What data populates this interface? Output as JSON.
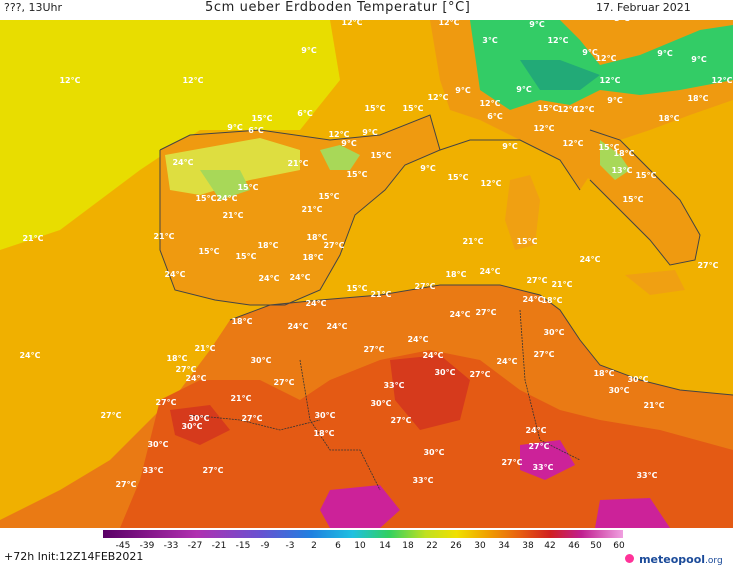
{
  "header": {
    "left": "???, 13Uhr",
    "title": "5cm ueber Erdboden Temperatur [°C]",
    "date": "17. Februar 2021"
  },
  "footer": {
    "run": "+72h Init:12Z14FEB2021",
    "brand": "meteopool",
    "brand_tld": ".org",
    "colorbar_ticks": [
      "-45",
      "-39",
      "-33",
      "-27",
      "-21",
      "-15",
      "-9",
      "-3",
      "2",
      "6",
      "10",
      "14",
      "18",
      "22",
      "26",
      "30",
      "34",
      "38",
      "42",
      "46",
      "50",
      "60"
    ]
  },
  "map_labels": [
    {
      "text": "12°C"
    },
    {
      "text": "12°C"
    },
    {
      "text": "9°C"
    },
    {
      "text": "3°C"
    },
    {
      "text": "6°C"
    },
    {
      "text": "9°C"
    },
    {
      "text": "12°C"
    },
    {
      "text": "12°C"
    },
    {
      "text": "9°C"
    },
    {
      "text": "12°C"
    },
    {
      "text": "3°C"
    },
    {
      "text": "9°C"
    },
    {
      "text": "9°C"
    },
    {
      "text": "12°C"
    },
    {
      "text": "9°C"
    },
    {
      "text": "12°C"
    },
    {
      "text": "15°C"
    },
    {
      "text": "15°C"
    },
    {
      "text": "15°C"
    },
    {
      "text": "9°C"
    },
    {
      "text": "6°C"
    },
    {
      "text": "6°C"
    },
    {
      "text": "12°C"
    },
    {
      "text": "9°C"
    },
    {
      "text": "9°C"
    },
    {
      "text": "12°C"
    },
    {
      "text": "6°C"
    },
    {
      "text": "9°C"
    },
    {
      "text": "15°C"
    },
    {
      "text": "12°C"
    },
    {
      "text": "12°C"
    },
    {
      "text": "9°C"
    },
    {
      "text": "12°C"
    },
    {
      "text": "9°C"
    },
    {
      "text": "15°C"
    },
    {
      "text": "9°C"
    },
    {
      "text": "15°C"
    },
    {
      "text": "12°C"
    },
    {
      "text": "9°C"
    },
    {
      "text": "12°C"
    },
    {
      "text": "12°C"
    },
    {
      "text": "15°C"
    },
    {
      "text": "18°C"
    },
    {
      "text": "13°C"
    },
    {
      "text": "15°C"
    },
    {
      "text": "15°C"
    },
    {
      "text": "18°C"
    },
    {
      "text": "18°C"
    },
    {
      "text": "12°C"
    },
    {
      "text": "21°C"
    },
    {
      "text": "15°C"
    },
    {
      "text": "15°C"
    },
    {
      "text": "15°C"
    },
    {
      "text": "24°C"
    },
    {
      "text": "15°C"
    },
    {
      "text": "21°C"
    },
    {
      "text": "21°C"
    },
    {
      "text": "24°C"
    },
    {
      "text": "21°C"
    },
    {
      "text": "15°C"
    },
    {
      "text": "15°C"
    },
    {
      "text": "18°C"
    },
    {
      "text": "18°C"
    },
    {
      "text": "27°C"
    },
    {
      "text": "18°C"
    },
    {
      "text": "21°C"
    },
    {
      "text": "21°C"
    },
    {
      "text": "15°C"
    },
    {
      "text": "24°C"
    },
    {
      "text": "27°C"
    },
    {
      "text": "24°C"
    },
    {
      "text": "24°C"
    },
    {
      "text": "24°C"
    },
    {
      "text": "18°C"
    },
    {
      "text": "24°C"
    },
    {
      "text": "27°C"
    },
    {
      "text": "21°C"
    },
    {
      "text": "24°C"
    },
    {
      "text": "15°C"
    },
    {
      "text": "21°C"
    },
    {
      "text": "27°C"
    },
    {
      "text": "24°C"
    },
    {
      "text": "18°C"
    },
    {
      "text": "18°C"
    },
    {
      "text": "24°C"
    },
    {
      "text": "24°C"
    },
    {
      "text": "24°C"
    },
    {
      "text": "27°C"
    },
    {
      "text": "30°C"
    },
    {
      "text": "24°C"
    },
    {
      "text": "21°C"
    },
    {
      "text": "18°C"
    },
    {
      "text": "27°C"
    },
    {
      "text": "30°C"
    },
    {
      "text": "24°C"
    },
    {
      "text": "27°C"
    },
    {
      "text": "24°C"
    },
    {
      "text": "30°C"
    },
    {
      "text": "27°C"
    },
    {
      "text": "27°C"
    },
    {
      "text": "24°C"
    },
    {
      "text": "18°C"
    },
    {
      "text": "30°C"
    },
    {
      "text": "24°C"
    },
    {
      "text": "21°C"
    },
    {
      "text": "27°C"
    },
    {
      "text": "30°C"
    },
    {
      "text": "27°C"
    },
    {
      "text": "27°C"
    },
    {
      "text": "30°C"
    },
    {
      "text": "33°C"
    },
    {
      "text": "27°C"
    },
    {
      "text": "30°C"
    },
    {
      "text": "21°C"
    },
    {
      "text": "27°C"
    },
    {
      "text": "30°C"
    },
    {
      "text": "30°C"
    },
    {
      "text": "30°C"
    },
    {
      "text": "18°C"
    },
    {
      "text": "30°C"
    },
    {
      "text": "24°C"
    },
    {
      "text": "27°C"
    },
    {
      "text": "27°C"
    },
    {
      "text": "33°C"
    },
    {
      "text": "33°C"
    },
    {
      "text": "27°C"
    },
    {
      "text": "27°C"
    },
    {
      "text": "33°C"
    },
    {
      "text": "33°C"
    }
  ],
  "colors": {
    "sea_cool": "#e6e600",
    "sea_warm": "#f2b000",
    "land_orange": "#ee8a10",
    "land_hot": "#e44a14",
    "land_very_hot": "#d43020",
    "magenta": "#cc2299",
    "cold_green": "#33cc66"
  }
}
